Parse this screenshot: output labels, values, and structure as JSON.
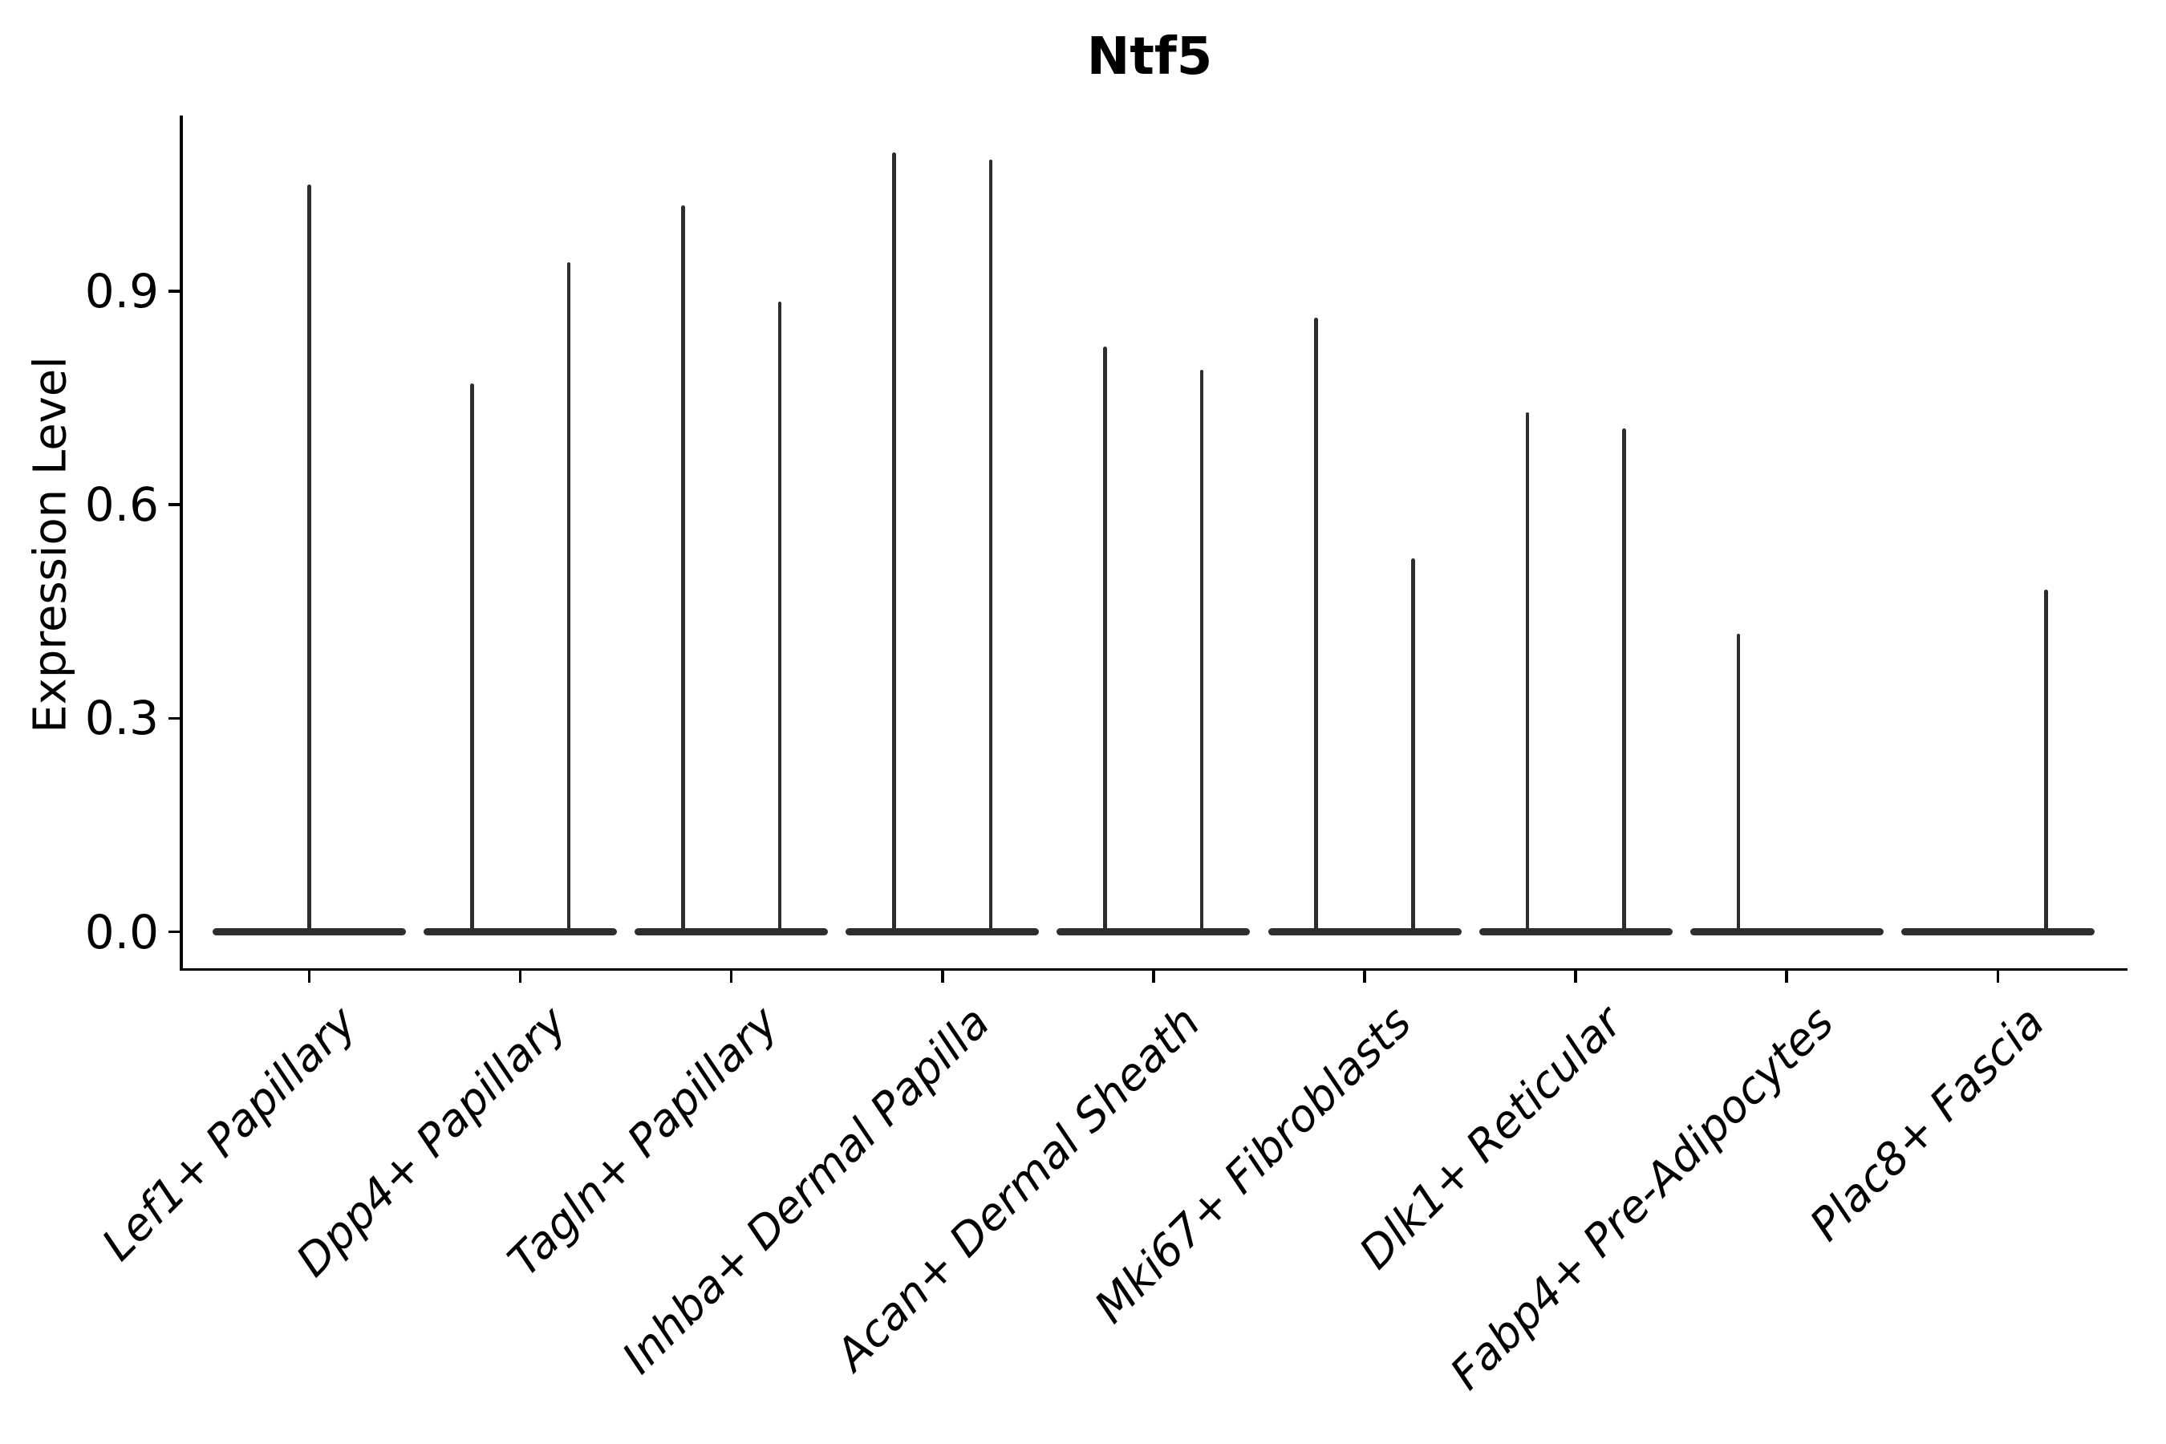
{
  "figure": {
    "title": "Ntf5"
  },
  "chart_data": {
    "type": "violin",
    "title": "Ntf5",
    "xlabel": "",
    "ylabel": "Expression Level",
    "ylim": [
      0,
      1.15
    ],
    "yticks": [
      "0.0",
      "0.3",
      "0.6",
      "0.9"
    ],
    "ytick_values": [
      0.0,
      0.3,
      0.6,
      0.9
    ],
    "grid": false,
    "legend": "none",
    "description": "Needle-thin violins: each violin is a flat pancake of zero-expression cells at y=0 with a hairline spike rising to the maximum expression value. Most categories contain two side-by-side (split) violins; a max of 0 means that violin has a pancake but no spike.",
    "categories": [
      "Lef1+ Papillary",
      "Dpp4+ Papillary",
      "Tagln+ Papillary",
      "Inhba+ Dermal Papilla",
      "Acan+ Dermal Sheath",
      "Mki67+ Fibroblasts",
      "Dlk1+ Reticular",
      "Fabp4+ Pre-Adipocytes",
      "Plac8+ Fascia"
    ],
    "violins": [
      {
        "category": "Lef1+ Papillary",
        "layout": "single-centered",
        "max_values": [
          1.05
        ]
      },
      {
        "category": "Dpp4+ Papillary",
        "layout": "split-pair",
        "max_values": [
          0.77,
          0.94
        ]
      },
      {
        "category": "Tagln+ Papillary",
        "layout": "split-pair",
        "max_values": [
          1.02,
          0.885
        ]
      },
      {
        "category": "Inhba+ Dermal Papilla",
        "layout": "split-pair",
        "max_values": [
          1.095,
          1.085
        ]
      },
      {
        "category": "Acan+ Dermal Sheath",
        "layout": "split-pair",
        "max_values": [
          0.822,
          0.79
        ]
      },
      {
        "category": "Mki67+ Fibroblasts",
        "layout": "split-pair",
        "max_values": [
          0.863,
          0.525
        ]
      },
      {
        "category": "Dlk1+ Reticular",
        "layout": "split-pair",
        "max_values": [
          0.73,
          0.707
        ]
      },
      {
        "category": "Fabp4+ Pre-Adipocytes",
        "layout": "split-pair",
        "max_values": [
          0.419,
          0
        ]
      },
      {
        "category": "Plac8+ Fascia",
        "layout": "split-pair",
        "max_values": [
          0,
          0.481
        ]
      }
    ],
    "colors": {
      "violin": "#2d2d2d",
      "axis": "#000000",
      "text": "#000000",
      "background": "#ffffff"
    }
  }
}
